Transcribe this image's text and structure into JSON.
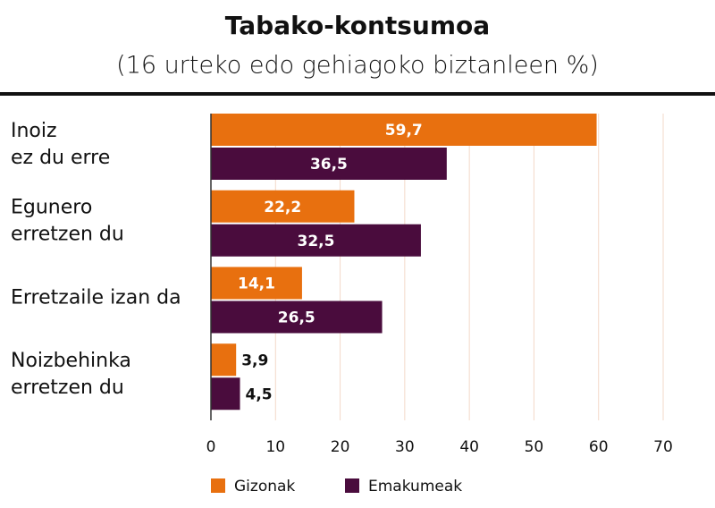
{
  "chart_data": {
    "type": "hbar",
    "title": "Tabako-kontsumoa",
    "subtitle": "(16 urteko edo gehiagoko biztanleen %)",
    "categories": [
      "Inoiz\nez du erre",
      "Egunero\nerretzen du",
      "Erretzaile izan da",
      "Noizbehinka\nerretzen du"
    ],
    "series": [
      {
        "name": "Gizonak",
        "color": "#e8700f",
        "values": [
          59.7,
          22.2,
          14.1,
          3.9
        ],
        "value_labels": [
          "59,7",
          "22,2",
          "14,1",
          "3,9"
        ]
      },
      {
        "name": "Emakumeak",
        "color": "#4a0c3d",
        "values": [
          36.5,
          32.5,
          26.5,
          4.5
        ],
        "value_labels": [
          "36,5",
          "32,5",
          "26,5",
          "4,5"
        ]
      }
    ],
    "xlim": [
      0,
      70
    ],
    "xticks": [
      0,
      10,
      20,
      30,
      40,
      50,
      60,
      70
    ],
    "grid": true,
    "legend": "bottom"
  }
}
